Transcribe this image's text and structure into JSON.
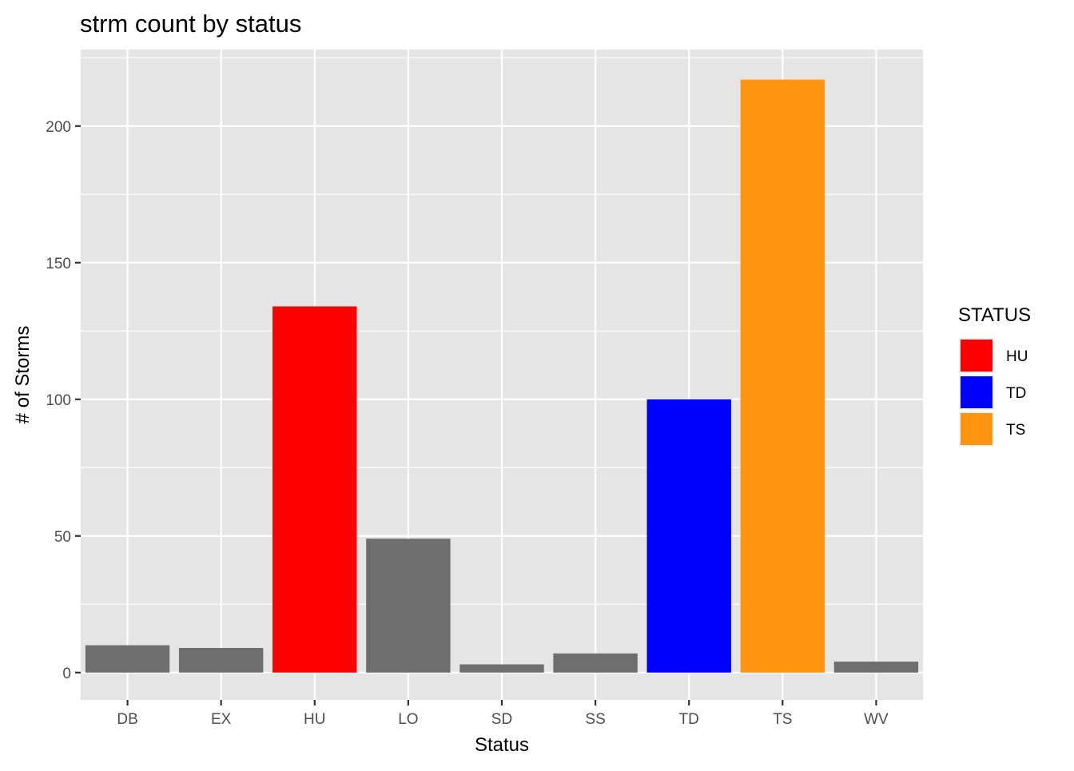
{
  "chart_data": {
    "type": "bar",
    "title": "strm count by status",
    "xlabel": "Status",
    "ylabel": "# of Storms",
    "categories": [
      "DB",
      "EX",
      "HU",
      "LO",
      "SD",
      "SS",
      "TD",
      "TS",
      "WV"
    ],
    "values": [
      10,
      9,
      134,
      49,
      3,
      7,
      100,
      217,
      4
    ],
    "fill_groups": [
      "other",
      "other",
      "HU",
      "other",
      "other",
      "other",
      "TD",
      "TS",
      "other"
    ],
    "ylim": [
      -10,
      228
    ],
    "yticks": [
      0,
      50,
      100,
      150,
      200
    ],
    "grid": true,
    "legend": {
      "title": "STATUS",
      "position": "right",
      "items": [
        {
          "label": "HU",
          "color": "#FF0000"
        },
        {
          "label": "TD",
          "color": "#0000FF"
        },
        {
          "label": "TS",
          "color": "#FF9410"
        }
      ]
    },
    "colors": {
      "HU": "#FF0000",
      "TD": "#0000FF",
      "TS": "#FF9410",
      "other": "#6E6E6E",
      "panel_background": "#E5E5E5",
      "grid": "#FFFFFF"
    }
  }
}
